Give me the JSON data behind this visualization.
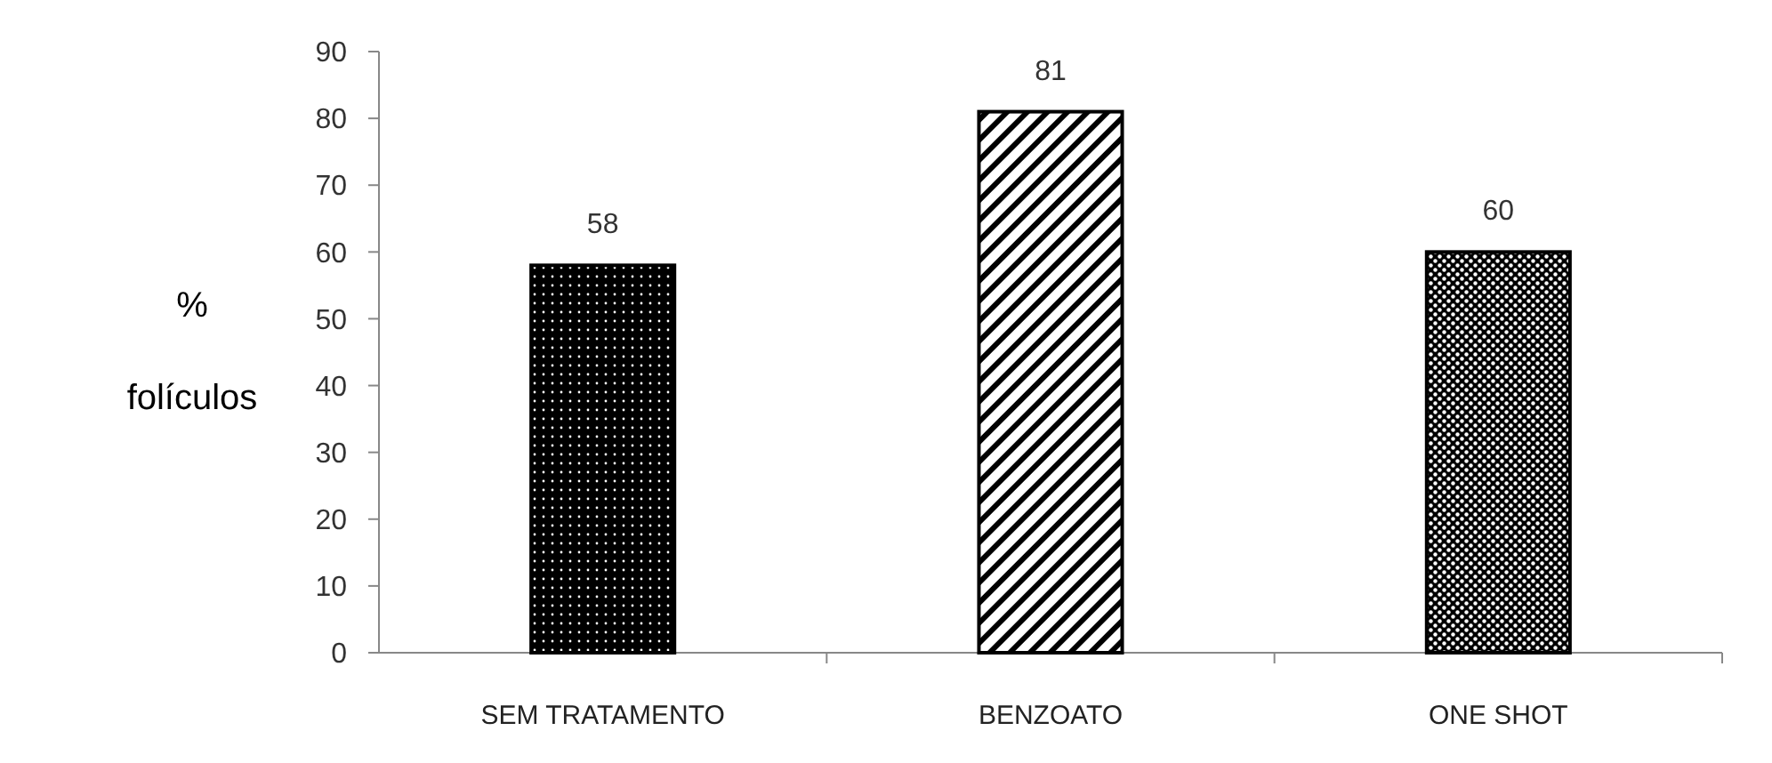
{
  "chart_data": {
    "type": "bar",
    "ylabel": "% folículos",
    "categories": [
      "SEM TRATAMENTO",
      "BENZOATO",
      "ONE SHOT"
    ],
    "values": [
      58,
      81,
      60
    ],
    "colors": [
      "#000000",
      "#000000",
      "#000000"
    ],
    "ylim": [
      0,
      90
    ],
    "yticks": [
      0,
      10,
      20,
      30,
      40,
      50,
      60,
      70,
      80,
      90
    ],
    "data_labels": true,
    "grid": false
  }
}
